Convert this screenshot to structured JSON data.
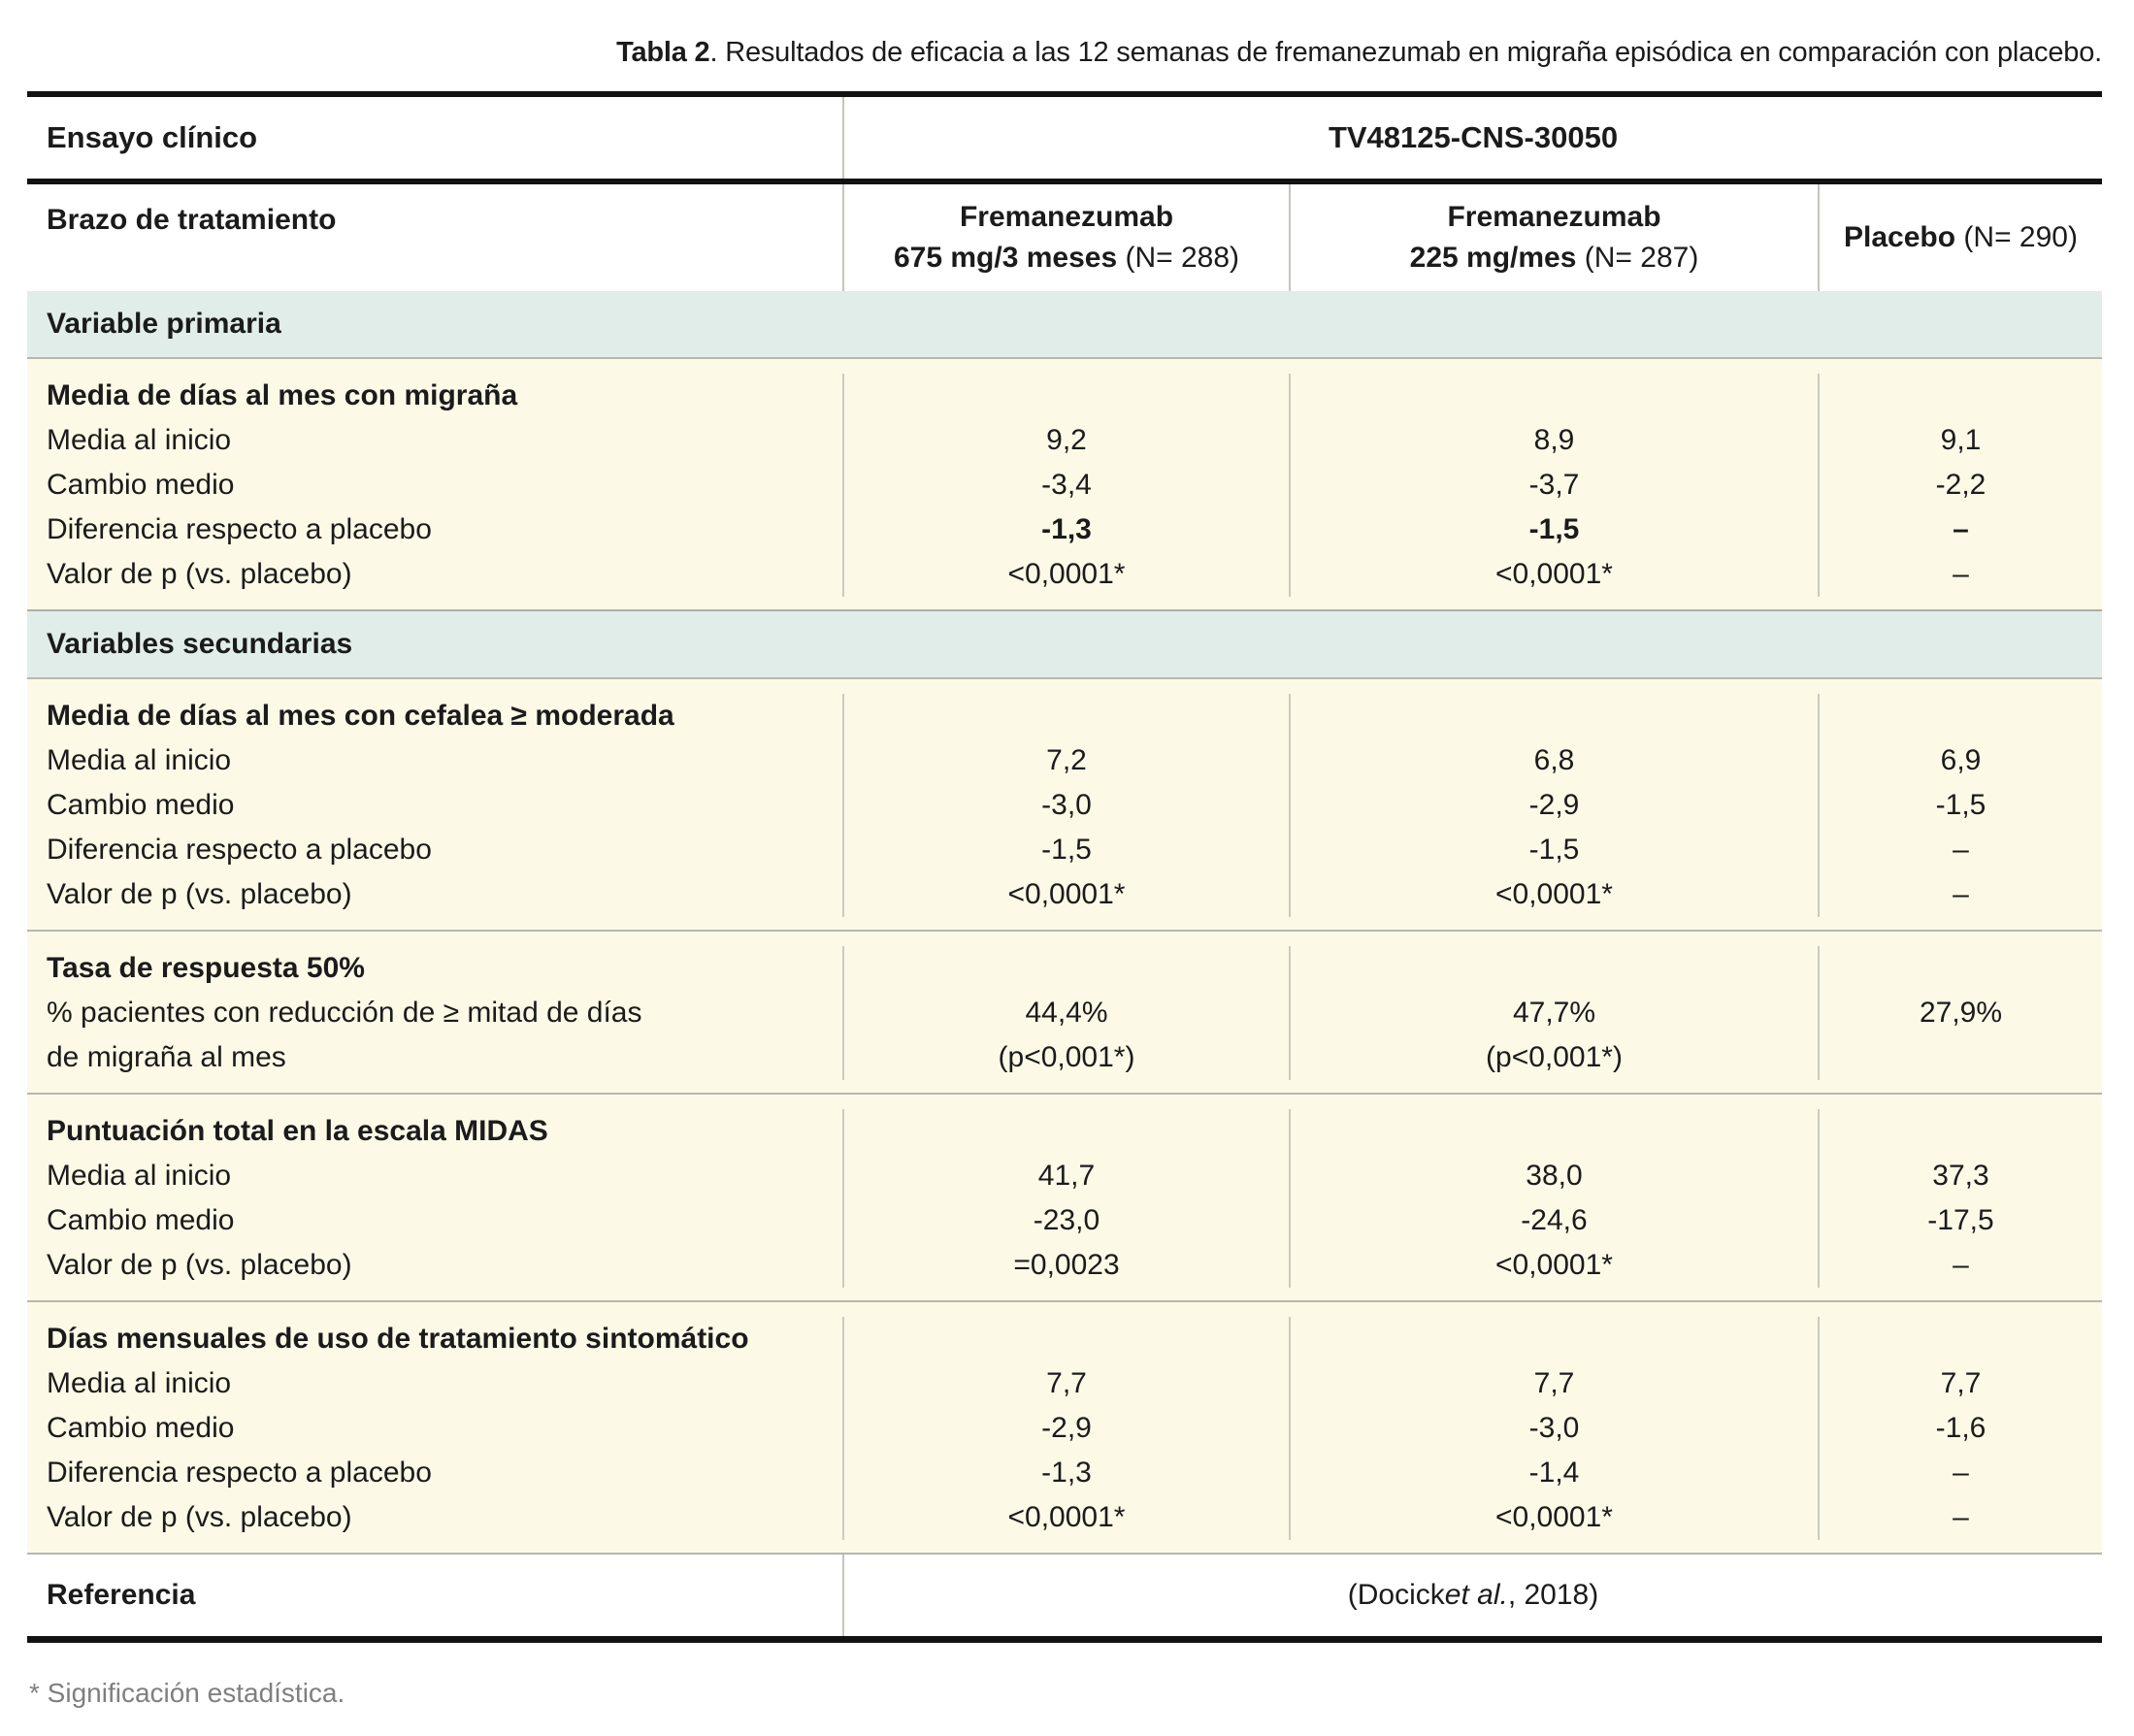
{
  "caption": {
    "bold": "Tabla 2",
    "rest": ". Resultados de eficacia a las 12 semanas de fremanezumab en migraña episódica en comparación con placebo."
  },
  "colors": {
    "section_band_bg": "#e1ede9",
    "data_block_bg": "#fdf9e7",
    "thick_rule": "#121212",
    "thin_rule": "#acb0a6",
    "footnote_gray": "#7f7f7f"
  },
  "table": {
    "trial_row": {
      "label": "Ensayo clínico",
      "value": "TV48125-CNS-30050"
    },
    "arm_row": {
      "label": "Brazo de tratamiento",
      "columns": [
        {
          "line1": "Fremanezumab",
          "line2_bold": "675 mg/3 meses",
          "line2_reg": "(N= 288)"
        },
        {
          "line1": "Fremanezumab",
          "line2_bold": "225 mg/mes",
          "line2_reg": "(N= 287)"
        },
        {
          "bold": "Placebo",
          "reg": "(N= 290)"
        }
      ]
    },
    "sections": [
      {
        "type": "band",
        "title": "Variable primaria"
      },
      {
        "type": "block",
        "rows": [
          {
            "label": "Media de días al mes con migraña",
            "title": true,
            "values": [
              "",
              "",
              ""
            ]
          },
          {
            "label": "Media al inicio",
            "values": [
              "9,2",
              "8,9",
              "9,1"
            ]
          },
          {
            "label": "Cambio medio",
            "values": [
              "-3,4",
              "-3,7",
              "-2,2"
            ]
          },
          {
            "label": "Diferencia respecto a placebo",
            "values": [
              "-1,3",
              "-1,5",
              "–"
            ],
            "value_bold": true
          },
          {
            "label": "Valor de p (vs. placebo)",
            "values": [
              "<0,0001*",
              "<0,0001*",
              "–"
            ]
          }
        ]
      },
      {
        "type": "band",
        "title": "Variables secundarias"
      },
      {
        "type": "block",
        "rows": [
          {
            "label": "Media de días al mes con cefalea ≥ moderada",
            "title": true,
            "values": [
              "",
              "",
              ""
            ]
          },
          {
            "label": "Media al inicio",
            "values": [
              "7,2",
              "6,8",
              "6,9"
            ]
          },
          {
            "label": "Cambio medio",
            "values": [
              "-3,0",
              "-2,9",
              "-1,5"
            ]
          },
          {
            "label": "Diferencia respecto a placebo",
            "values": [
              "-1,5",
              "-1,5",
              "–"
            ]
          },
          {
            "label": "Valor de p (vs. placebo)",
            "values": [
              "<0,0001*",
              "<0,0001*",
              "–"
            ]
          }
        ]
      },
      {
        "type": "block",
        "rows": [
          {
            "label": "Tasa de respuesta 50%",
            "title": true,
            "values": [
              "",
              "",
              ""
            ]
          },
          {
            "label": "% pacientes con reducción de ≥ mitad de días",
            "values": [
              "44,4%",
              "47,7%",
              "27,9%"
            ]
          },
          {
            "label": "de migraña al mes",
            "values": [
              "(p<0,001*)",
              "(p<0,001*)",
              ""
            ]
          }
        ]
      },
      {
        "type": "block",
        "rows": [
          {
            "label": "Puntuación total en la escala MIDAS",
            "title": true,
            "values": [
              "",
              "",
              ""
            ]
          },
          {
            "label": "Media al inicio",
            "values": [
              "41,7",
              "38,0",
              "37,3"
            ]
          },
          {
            "label": "Cambio medio",
            "values": [
              "-23,0",
              "-24,6",
              "-17,5"
            ]
          },
          {
            "label": "Valor de p (vs. placebo)",
            "values": [
              "=0,0023",
              "<0,0001*",
              "–"
            ]
          }
        ]
      },
      {
        "type": "block",
        "rows": [
          {
            "label": "Días mensuales de uso de tratamiento sintomático",
            "title": true,
            "values": [
              "",
              "",
              ""
            ]
          },
          {
            "label": "Media al inicio",
            "values": [
              "7,7",
              "7,7",
              "7,7"
            ]
          },
          {
            "label": "Cambio medio",
            "values": [
              "-2,9",
              "-3,0",
              "-1,6"
            ]
          },
          {
            "label": "Diferencia respecto a placebo",
            "values": [
              "-1,3",
              "-1,4",
              "–"
            ]
          },
          {
            "label": "Valor de p (vs. placebo)",
            "values": [
              "<0,0001*",
              "<0,0001*",
              "–"
            ]
          }
        ]
      }
    ],
    "reference_row": {
      "label": "Referencia",
      "pre": "(Docick ",
      "italic": "et al.",
      "post": ", 2018)"
    }
  },
  "footnote": "* Significación estadística."
}
